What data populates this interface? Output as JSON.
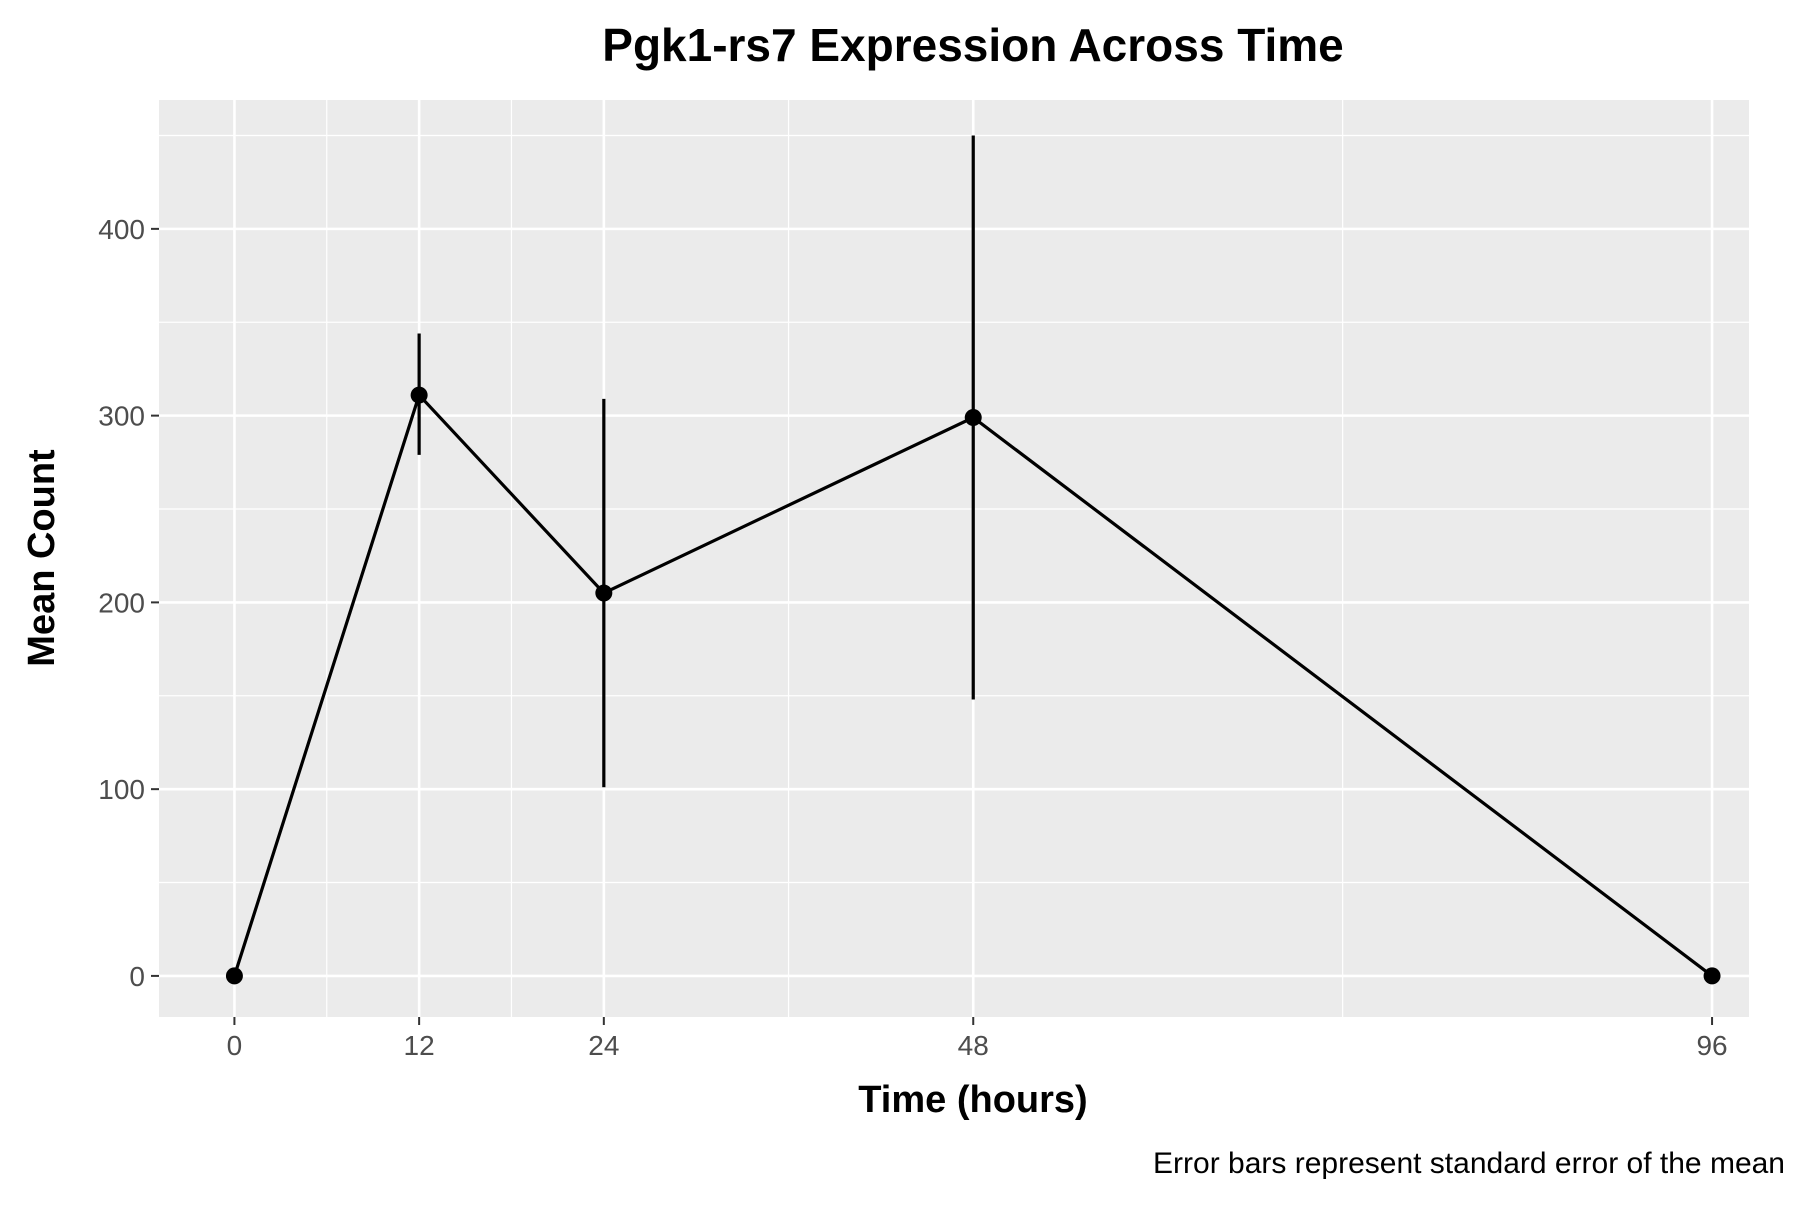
{
  "chart_data": {
    "type": "line",
    "title": "Pgk1-rs7 Expression Across Time",
    "xlabel": "Time (hours)",
    "ylabel": "Mean Count",
    "caption": "Error bars represent standard error of the mean",
    "x": [
      0,
      12,
      24,
      48,
      96
    ],
    "x_tick_labels": [
      "0",
      "12",
      "24",
      "48",
      "96"
    ],
    "y_ticks": [
      0,
      100,
      200,
      300,
      400
    ],
    "y_tick_labels": [
      "0",
      "100",
      "200",
      "300",
      "400"
    ],
    "xlim": [
      -4.9,
      98.4
    ],
    "ylim": [
      -22,
      469
    ],
    "series": [
      {
        "values": [
          0,
          311,
          205,
          299,
          0
        ],
        "error_lower": [
          0,
          279,
          101,
          148,
          0
        ],
        "error_upper": [
          0,
          344,
          309,
          450,
          0
        ]
      }
    ],
    "grid": true,
    "legend": "none",
    "colors": {
      "panel_background": "#ebebeb",
      "grid_line": "#ffffff",
      "series": "#000000",
      "tick_text": "#4d4d4d"
    }
  }
}
